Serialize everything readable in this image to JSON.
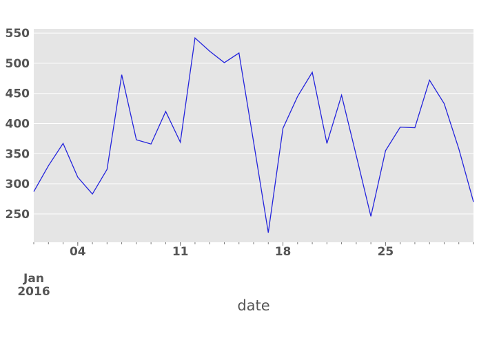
{
  "chart_data": {
    "type": "line",
    "x_title": "date",
    "x": [
      "2016-01-01",
      "2016-01-02",
      "2016-01-03",
      "2016-01-04",
      "2016-01-05",
      "2016-01-06",
      "2016-01-07",
      "2016-01-08",
      "2016-01-09",
      "2016-01-10",
      "2016-01-11",
      "2016-01-12",
      "2016-01-13",
      "2016-01-14",
      "2016-01-15",
      "2016-01-16",
      "2016-01-17",
      "2016-01-18",
      "2016-01-19",
      "2016-01-20",
      "2016-01-21",
      "2016-01-22",
      "2016-01-23",
      "2016-01-24",
      "2016-01-25",
      "2016-01-26",
      "2016-01-27",
      "2016-01-28",
      "2016-01-29",
      "2016-01-30",
      "2016-01-31"
    ],
    "values": [
      287,
      330,
      367,
      311,
      283,
      324,
      481,
      373,
      366,
      420,
      369,
      542,
      520,
      501,
      517,
      369,
      219,
      392,
      445,
      485,
      367,
      447,
      347,
      246,
      355,
      394,
      393,
      472,
      433,
      358,
      270
    ],
    "color": "#2323dc",
    "xlim": [
      "2016-01-01",
      "2016-01-31"
    ],
    "xticks": [
      {
        "value": "2016-01-04",
        "label": "04"
      },
      {
        "value": "2016-01-11",
        "label": "11"
      },
      {
        "value": "2016-01-18",
        "label": "18"
      },
      {
        "value": "2016-01-25",
        "label": "25"
      }
    ],
    "x_period_label": {
      "value": "2016-01-01",
      "lines": [
        "Jan",
        "2016"
      ]
    },
    "ylim": [
      203,
      557
    ],
    "yticks": [
      250,
      300,
      350,
      400,
      450,
      500,
      550
    ],
    "grid": true
  }
}
